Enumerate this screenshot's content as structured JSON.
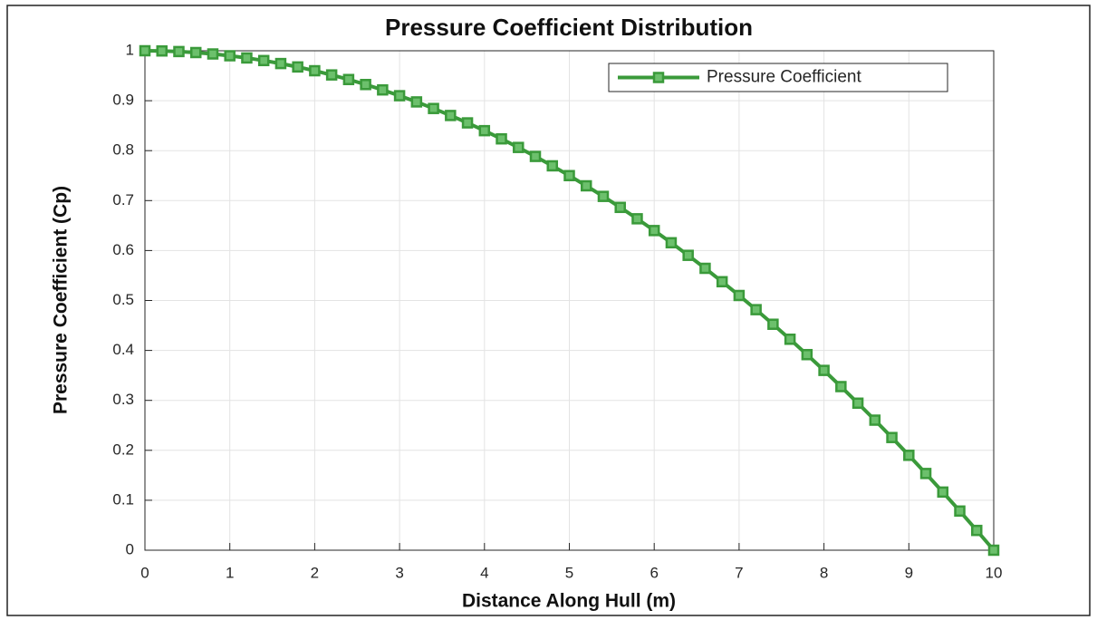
{
  "chart_data": {
    "type": "line",
    "title": "Pressure Coefficient Distribution",
    "xlabel": "Distance Along Hull (m)",
    "ylabel": "Pressure Coefficient (Cp)",
    "x": [
      0,
      0.2,
      0.4,
      0.6,
      0.8,
      1,
      1.2,
      1.4,
      1.6,
      1.8,
      2,
      2.2,
      2.4,
      2.6,
      2.8,
      3,
      3.2,
      3.4,
      3.6,
      3.8,
      4,
      4.2,
      4.4,
      4.6,
      4.8,
      5,
      5.2,
      5.4,
      5.6,
      5.8,
      6,
      6.2,
      6.4,
      6.6,
      6.8,
      7,
      7.2,
      7.4,
      7.6,
      7.8,
      8,
      8.2,
      8.4,
      8.6,
      8.8,
      9,
      9.2,
      9.4,
      9.6,
      9.8,
      10
    ],
    "series": [
      {
        "name": "Pressure Coefficient",
        "color": "#3a9a3a",
        "marker": "square",
        "values": [
          1,
          0.9996,
          0.9984,
          0.9964,
          0.9936,
          0.99,
          0.9856,
          0.9804,
          0.9744,
          0.9676,
          0.96,
          0.9516,
          0.9424,
          0.9324,
          0.9216,
          0.91,
          0.8976,
          0.8844,
          0.8704,
          0.8556,
          0.84,
          0.8236,
          0.8064,
          0.7884,
          0.7696,
          0.75,
          0.7296,
          0.7084,
          0.6864,
          0.6636,
          0.64,
          0.6156,
          0.5904,
          0.5644,
          0.5376,
          0.51,
          0.4816,
          0.4524,
          0.4224,
          0.3916,
          0.36,
          0.3276,
          0.2944,
          0.2604,
          0.2256,
          0.19,
          0.1536,
          0.1164,
          0.0784,
          0.0396,
          0
        ]
      }
    ],
    "xlim": [
      0,
      10
    ],
    "xticks": [
      0,
      1,
      2,
      3,
      4,
      5,
      6,
      7,
      8,
      9,
      10
    ],
    "ylim": [
      0,
      1
    ],
    "yticks": [
      0,
      0.1,
      0.2,
      0.3,
      0.4,
      0.5,
      0.6,
      0.7,
      0.8,
      0.9,
      1
    ],
    "grid": true,
    "legend": "upper right"
  }
}
